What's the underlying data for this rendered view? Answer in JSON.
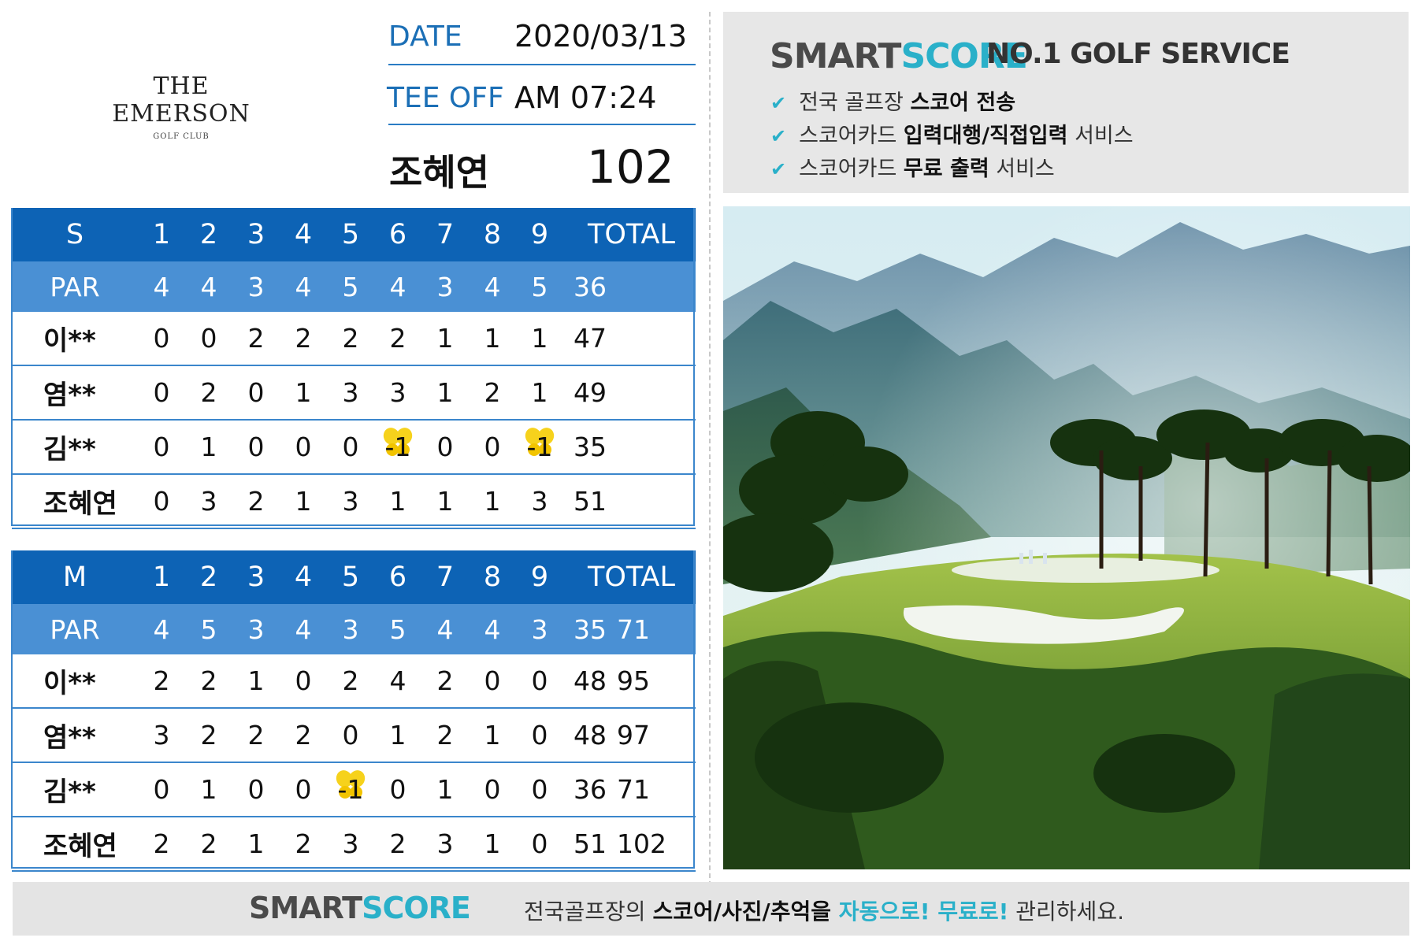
{
  "club": {
    "name": "THE EMERSON",
    "subtitle": "GOLF CLUB"
  },
  "info": {
    "date_label": "DATE",
    "date_value": "2020/03/13",
    "tee_label": "TEE OFF",
    "tee_value": "AM 07:24",
    "player_name": "조혜연",
    "player_total": "102"
  },
  "course_s": {
    "label": "S",
    "holes": [
      "1",
      "2",
      "3",
      "4",
      "5",
      "6",
      "7",
      "8",
      "9"
    ],
    "total_label": "TOTAL",
    "par_label": "PAR",
    "par": [
      "4",
      "4",
      "3",
      "4",
      "5",
      "4",
      "3",
      "4",
      "5"
    ],
    "par_total": "36",
    "rows": [
      {
        "name": "이**",
        "scores": [
          "0",
          "0",
          "2",
          "2",
          "2",
          "2",
          "1",
          "1",
          "1"
        ],
        "total": "47"
      },
      {
        "name": "염**",
        "scores": [
          "0",
          "2",
          "0",
          "1",
          "3",
          "3",
          "1",
          "2",
          "1"
        ],
        "total": "49"
      },
      {
        "name": "김**",
        "scores": [
          "0",
          "1",
          "0",
          "0",
          "0",
          "-1",
          "0",
          "0",
          "-1"
        ],
        "total": "35"
      },
      {
        "name": "조혜연",
        "scores": [
          "0",
          "3",
          "2",
          "1",
          "3",
          "1",
          "1",
          "1",
          "3"
        ],
        "total": "51"
      }
    ]
  },
  "course_m": {
    "label": "M",
    "holes": [
      "1",
      "2",
      "3",
      "4",
      "5",
      "6",
      "7",
      "8",
      "9"
    ],
    "total_label": "TOTAL",
    "par_label": "PAR",
    "par": [
      "4",
      "5",
      "3",
      "4",
      "3",
      "5",
      "4",
      "4",
      "3"
    ],
    "par_total": "35",
    "par_grand": "71",
    "rows": [
      {
        "name": "이**",
        "scores": [
          "2",
          "2",
          "1",
          "0",
          "2",
          "4",
          "2",
          "0",
          "0"
        ],
        "total": "48",
        "grand": "95"
      },
      {
        "name": "염**",
        "scores": [
          "3",
          "2",
          "2",
          "2",
          "0",
          "1",
          "2",
          "1",
          "0"
        ],
        "total": "48",
        "grand": "97"
      },
      {
        "name": "김**",
        "scores": [
          "0",
          "1",
          "0",
          "0",
          "-1",
          "0",
          "1",
          "0",
          "0"
        ],
        "total": "36",
        "grand": "71"
      },
      {
        "name": "조혜연",
        "scores": [
          "2",
          "2",
          "1",
          "2",
          "3",
          "2",
          "3",
          "1",
          "0"
        ],
        "total": "51",
        "grand": "102"
      }
    ]
  },
  "promo": {
    "brand_smart": "SMART",
    "brand_score": "SCORE",
    "tagline": "NO.1 GOLF SERVICE",
    "items": [
      {
        "pre": "전국 골프장 ",
        "bold": "스코어 전송",
        "post": ""
      },
      {
        "pre": "스코어카드 ",
        "bold": "입력대행/직접입력",
        "post": " 서비스"
      },
      {
        "pre": "스코어카드 ",
        "bold": "무료 출력",
        "post": " 서비스"
      }
    ]
  },
  "banner": {
    "brand_smart": "SMART",
    "brand_score": "SCORE",
    "text_pre": "전국골프장의 ",
    "text_bold": "스코어/사진/추억을 ",
    "text_hl": "자동으로! 무료로!",
    "text_post": " 관리하세요."
  },
  "colors": {
    "header_blue": "#0d63b5",
    "par_blue": "#4a90d4",
    "accent": "#2ab0c9",
    "birdie": "#f6d21c"
  }
}
